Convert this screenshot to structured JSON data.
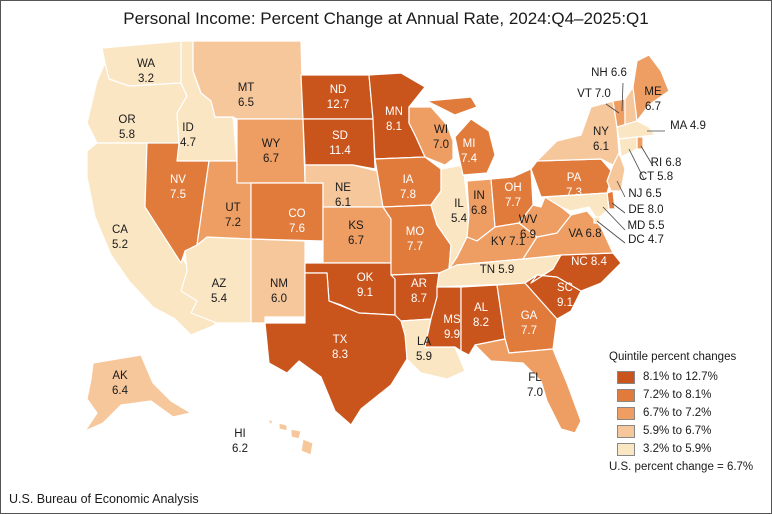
{
  "title": "Personal Income: Percent Change at Annual Rate, 2024:Q4–2025:Q1",
  "source": "U.S. Bureau of Economic Analysis",
  "legend": {
    "title": "Quintile percent changes",
    "items": [
      {
        "label": "8.1% to 12.7%",
        "color": "#c9551c"
      },
      {
        "label": "7.2% to 8.1%",
        "color": "#e07b3c"
      },
      {
        "label": "6.7% to 7.2%",
        "color": "#ee9e63"
      },
      {
        "label": "5.9% to 6.7%",
        "color": "#f7c79c"
      },
      {
        "label": "3.2% to 5.9%",
        "color": "#fbe6c4"
      }
    ],
    "us_note": "U.S. percent change = 6.7%"
  },
  "states": [
    {
      "abbr": "WA",
      "value": "3.2",
      "quintile": 5
    },
    {
      "abbr": "OR",
      "value": "5.8",
      "quintile": 5
    },
    {
      "abbr": "CA",
      "value": "5.2",
      "quintile": 5
    },
    {
      "abbr": "ID",
      "value": "4.7",
      "quintile": 5
    },
    {
      "abbr": "NV",
      "value": "7.5",
      "quintile": 2
    },
    {
      "abbr": "AZ",
      "value": "5.4",
      "quintile": 5
    },
    {
      "abbr": "UT",
      "value": "7.2",
      "quintile": 3
    },
    {
      "abbr": "MT",
      "value": "6.5",
      "quintile": 4
    },
    {
      "abbr": "WY",
      "value": "6.7",
      "quintile": 3
    },
    {
      "abbr": "CO",
      "value": "7.6",
      "quintile": 2
    },
    {
      "abbr": "NM",
      "value": "6.0",
      "quintile": 4
    },
    {
      "abbr": "ND",
      "value": "12.7",
      "quintile": 1
    },
    {
      "abbr": "SD",
      "value": "11.4",
      "quintile": 1
    },
    {
      "abbr": "NE",
      "value": "6.1",
      "quintile": 4
    },
    {
      "abbr": "KS",
      "value": "6.7",
      "quintile": 3
    },
    {
      "abbr": "OK",
      "value": "9.1",
      "quintile": 1
    },
    {
      "abbr": "TX",
      "value": "8.3",
      "quintile": 1
    },
    {
      "abbr": "MN",
      "value": "8.1",
      "quintile": 1
    },
    {
      "abbr": "IA",
      "value": "7.8",
      "quintile": 2
    },
    {
      "abbr": "MO",
      "value": "7.7",
      "quintile": 2
    },
    {
      "abbr": "AR",
      "value": "8.7",
      "quintile": 1
    },
    {
      "abbr": "LA",
      "value": "5.9",
      "quintile": 5
    },
    {
      "abbr": "WI",
      "value": "7.0",
      "quintile": 3
    },
    {
      "abbr": "IL",
      "value": "5.4",
      "quintile": 5
    },
    {
      "abbr": "MI",
      "value": "7.4",
      "quintile": 2
    },
    {
      "abbr": "IN",
      "value": "6.8",
      "quintile": 3
    },
    {
      "abbr": "OH",
      "value": "7.7",
      "quintile": 2
    },
    {
      "abbr": "KY",
      "value": "7.1",
      "quintile": 3
    },
    {
      "abbr": "TN",
      "value": "5.9",
      "quintile": 5
    },
    {
      "abbr": "MS",
      "value": "9.9",
      "quintile": 1
    },
    {
      "abbr": "AL",
      "value": "8.2",
      "quintile": 1
    },
    {
      "abbr": "GA",
      "value": "7.7",
      "quintile": 2
    },
    {
      "abbr": "FL",
      "value": "7.0",
      "quintile": 3
    },
    {
      "abbr": "SC",
      "value": "9.1",
      "quintile": 1
    },
    {
      "abbr": "NC",
      "value": "8.4",
      "quintile": 1
    },
    {
      "abbr": "VA",
      "value": "6.8",
      "quintile": 3
    },
    {
      "abbr": "WV",
      "value": "6.9",
      "quintile": 3
    },
    {
      "abbr": "PA",
      "value": "7.3",
      "quintile": 2
    },
    {
      "abbr": "NY",
      "value": "6.1",
      "quintile": 4
    },
    {
      "abbr": "VT",
      "value": "7.0",
      "quintile": 3
    },
    {
      "abbr": "NH",
      "value": "6.6",
      "quintile": 4
    },
    {
      "abbr": "ME",
      "value": "6.7",
      "quintile": 3
    },
    {
      "abbr": "MA",
      "value": "4.9",
      "quintile": 5
    },
    {
      "abbr": "RI",
      "value": "6.8",
      "quintile": 3
    },
    {
      "abbr": "CT",
      "value": "5.8",
      "quintile": 5
    },
    {
      "abbr": "NJ",
      "value": "6.5",
      "quintile": 4
    },
    {
      "abbr": "DE",
      "value": "8.0",
      "quintile": 2
    },
    {
      "abbr": "MD",
      "value": "5.5",
      "quintile": 5
    },
    {
      "abbr": "DC",
      "value": "4.7",
      "quintile": 5
    },
    {
      "abbr": "AK",
      "value": "6.4",
      "quintile": 4
    },
    {
      "abbr": "HI",
      "value": "6.2",
      "quintile": 4
    }
  ]
}
